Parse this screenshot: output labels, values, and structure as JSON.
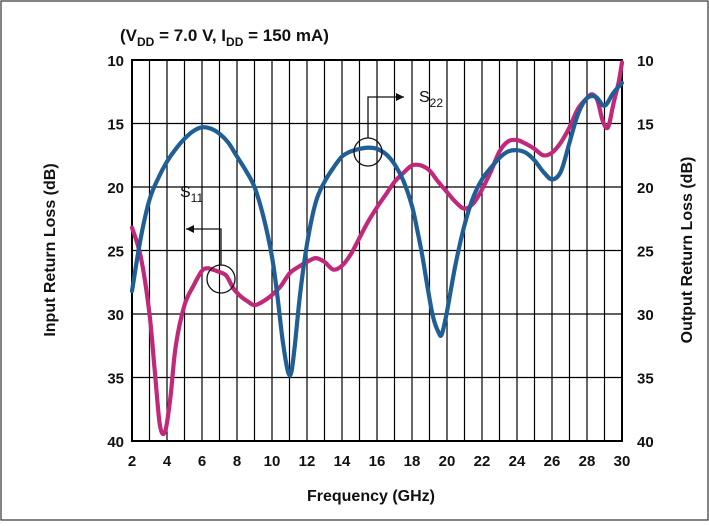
{
  "chart_data": {
    "type": "line",
    "title_parts": {
      "open": "(V",
      "vdd_sub": "DD",
      "vdd_val": " = 7.0 V,  I",
      "idd_sub": "DD",
      "idd_val": " = 150 mA)"
    },
    "xlabel": "Frequency (GHz)",
    "ylabel_left": "Input Return Loss (dB)",
    "ylabel_right": "Output Return Loss (dB)",
    "xlim": [
      2,
      30
    ],
    "ylim": [
      10,
      40
    ],
    "y_inverted": true,
    "grid": true,
    "x_ticks": [
      "2",
      "4",
      "6",
      "8",
      "10",
      "12",
      "14",
      "16",
      "18",
      "20",
      "22",
      "24",
      "26",
      "28",
      "30"
    ],
    "y_ticks": [
      "10",
      "15",
      "20",
      "25",
      "30",
      "35",
      "40"
    ],
    "series": [
      {
        "name": "S11",
        "label_main": "S",
        "label_sub": "11",
        "axis": "left",
        "color": "#c2287a",
        "x": [
          2,
          2.5,
          3,
          3.3,
          3.6,
          3.9,
          4.2,
          4.5,
          5,
          5.5,
          6,
          6.3,
          6.6,
          7,
          7.4,
          7.8,
          8.2,
          8.6,
          9,
          9.5,
          10,
          10.5,
          11,
          11.5,
          12,
          12.5,
          13,
          13.5,
          14,
          14.5,
          15,
          15.5,
          16,
          16.5,
          17,
          17.5,
          18,
          18.5,
          19,
          19.5,
          20,
          20.5,
          21,
          21.5,
          22,
          22.5,
          23,
          23.5,
          24,
          24.5,
          25,
          25.5,
          26,
          26.5,
          27,
          27.5,
          28,
          28.3,
          28.6,
          28.9,
          29.2,
          29.5,
          29.8,
          30
        ],
        "y": [
          23.2,
          25.5,
          30,
          34.5,
          38.8,
          39.2,
          36.5,
          32.5,
          29.3,
          27.8,
          26.6,
          26.4,
          26.5,
          26.7,
          27,
          28,
          28.6,
          29,
          29.3,
          29,
          28.5,
          27.8,
          26.8,
          26.3,
          25.9,
          25.6,
          25.9,
          26.5,
          26.2,
          25.3,
          24,
          22.7,
          21.6,
          20.6,
          19.6,
          18.9,
          18.3,
          18.3,
          18.7,
          19.6,
          20.4,
          21.2,
          21.7,
          21.3,
          20.2,
          18.8,
          17.2,
          16.4,
          16.3,
          16.6,
          17,
          17.5,
          17.3,
          16.5,
          15.3,
          13.8,
          13,
          12.7,
          13.2,
          14.8,
          15.3,
          13.5,
          11.8,
          10.2
        ]
      },
      {
        "name": "S22",
        "label_main": "S",
        "label_sub": "22",
        "axis": "right",
        "color": "#1f5f96",
        "x": [
          2,
          2.5,
          3,
          3.5,
          4,
          4.5,
          5,
          5.5,
          6,
          6.5,
          7,
          7.5,
          8,
          8.5,
          9,
          9.5,
          10,
          10.3,
          10.6,
          10.9,
          11.1,
          11.3,
          11.6,
          12,
          12.5,
          13,
          13.5,
          14,
          14.5,
          15,
          15.5,
          16,
          16.5,
          17,
          17.5,
          18,
          18.3,
          18.6,
          18.9,
          19.2,
          19.5,
          19.7,
          20,
          20.5,
          21,
          21.5,
          22,
          22.5,
          23,
          23.5,
          24,
          24.5,
          25,
          25.5,
          26,
          26.5,
          27,
          27.5,
          28,
          28.5,
          29,
          29.5,
          30
        ],
        "y": [
          28.2,
          24,
          21,
          19.3,
          18,
          17,
          16.2,
          15.6,
          15.3,
          15.4,
          15.8,
          16.5,
          17.6,
          18.7,
          20,
          22.3,
          25.5,
          28.5,
          32,
          34.5,
          34.6,
          32.5,
          28.5,
          24.5,
          21.2,
          19.6,
          18.5,
          17.6,
          17.2,
          17,
          16.9,
          17,
          17.4,
          18.2,
          19.5,
          21.5,
          23.4,
          25.5,
          28,
          30.2,
          31.4,
          31.6,
          29.8,
          26,
          23,
          20.8,
          19.4,
          18.5,
          17.7,
          17.2,
          17.1,
          17.3,
          17.9,
          18.8,
          19.4,
          18.8,
          16.5,
          14.2,
          13,
          12.9,
          13.6,
          12.6,
          11.8
        ]
      }
    ]
  }
}
